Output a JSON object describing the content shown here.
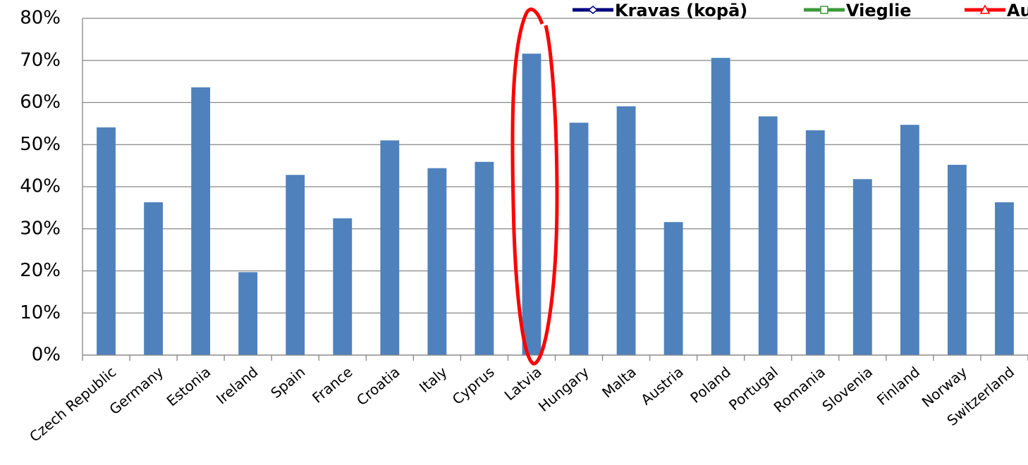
{
  "chart_data": {
    "type": "bar",
    "categories": [
      "Czech Republic",
      "Germany",
      "Estonia",
      "Ireland",
      "Spain",
      "France",
      "Croatia",
      "Italy",
      "Cyprus",
      "Latvia",
      "Hungary",
      "Malta",
      "Austria",
      "Poland",
      "Portugal",
      "Romania",
      "Slovenia",
      "Finland",
      "Norway",
      "Switzerland"
    ],
    "values": [
      54.1,
      36.3,
      63.6,
      19.7,
      42.8,
      32.5,
      51.0,
      44.4,
      45.9,
      71.6,
      55.2,
      59.1,
      31.6,
      70.6,
      56.7,
      53.4,
      41.8,
      54.7,
      45.2,
      36.3
    ],
    "color": "#4f81bd",
    "ylim": [
      0,
      80
    ],
    "yticks": [
      {
        "value": 0,
        "label": "0%"
      },
      {
        "value": 10,
        "label": "10%"
      },
      {
        "value": 20,
        "label": "20%"
      },
      {
        "value": 30,
        "label": "30%"
      },
      {
        "value": 40,
        "label": "40%"
      },
      {
        "value": 50,
        "label": "50%"
      },
      {
        "value": 60,
        "label": "60%"
      },
      {
        "value": 70,
        "label": "70%"
      },
      {
        "value": 80,
        "label": "80%"
      }
    ],
    "grid": true,
    "legend": [
      {
        "name": "Kravas (kopā)",
        "color": "#000080",
        "marker": "diamond"
      },
      {
        "name": "Vieglie",
        "color": "#3a9b3a",
        "marker": "square"
      },
      {
        "name": "Aut",
        "color": "#ff0000",
        "marker": "triangle"
      }
    ]
  }
}
